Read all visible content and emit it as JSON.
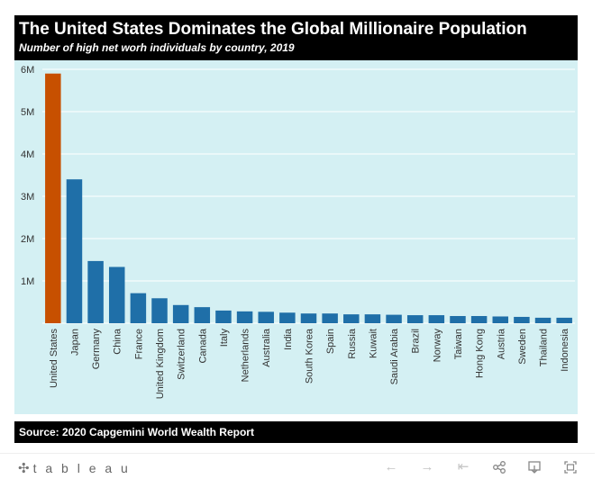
{
  "header": {
    "title": "The United States Dominates the Global Millionaire Population",
    "subtitle": "Number of high net worh individuals by country, 2019"
  },
  "footer": {
    "source": "Source: 2020 Capgemini World Wealth Report"
  },
  "toolbar": {
    "brand": "+ t a b l e a u",
    "undo_icon": "arrow-left-icon",
    "redo_icon": "arrow-right-icon",
    "revert_icon": "revert-icon",
    "share_icon": "share-icon",
    "download_icon": "download-icon",
    "fullscreen_icon": "fullscreen-icon"
  },
  "colors": {
    "highlight": "#c75000",
    "bar": "#1f6fa8",
    "background": "#d4f0f3",
    "header": "#000000"
  },
  "chart_data": {
    "type": "bar",
    "categories": [
      "United States",
      "Japan",
      "Germany",
      "China",
      "France",
      "United Kingdom",
      "Switzerland",
      "Canada",
      "Italy",
      "Netherlands",
      "Australia",
      "India",
      "South Korea",
      "Spain",
      "Russia",
      "Kuwait",
      "Saudi Arabia",
      "Brazil",
      "Norway",
      "Taiwan",
      "Hong Kong",
      "Austria",
      "Sweden",
      "Thailand",
      "Indonesia"
    ],
    "values": [
      5900000,
      3400000,
      1470000,
      1330000,
      710000,
      590000,
      430000,
      380000,
      300000,
      280000,
      270000,
      250000,
      230000,
      230000,
      210000,
      210000,
      200000,
      190000,
      190000,
      170000,
      170000,
      160000,
      150000,
      130000,
      130000
    ],
    "highlight_category": "United States",
    "yticks": [
      {
        "value": 1000000,
        "label": "1M"
      },
      {
        "value": 2000000,
        "label": "2M"
      },
      {
        "value": 3000000,
        "label": "3M"
      },
      {
        "value": 4000000,
        "label": "4M"
      },
      {
        "value": 5000000,
        "label": "5M"
      },
      {
        "value": 6000000,
        "label": "6M"
      }
    ],
    "ylim": [
      0,
      6000000
    ],
    "grid": true,
    "xlabel": "",
    "ylabel": ""
  }
}
